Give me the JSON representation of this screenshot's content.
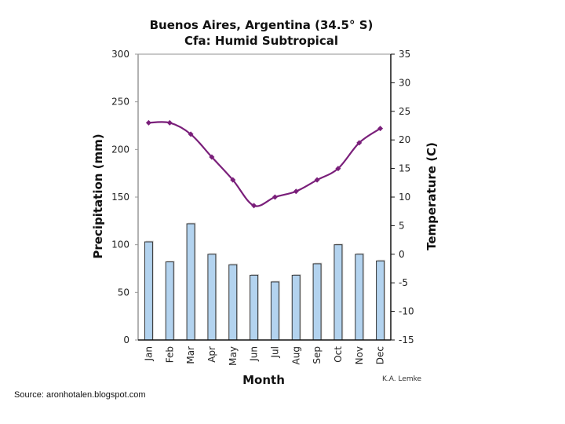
{
  "chart_data": {
    "type": "bar+line",
    "title": "Buenos Aires, Argentina (34.5° S)",
    "subtitle": "Cfa: Humid Subtropical",
    "xlabel": "Month",
    "ylabel_left": "Precipitation (mm)",
    "ylabel_right": "Temperature (C)",
    "categories": [
      "Jan",
      "Feb",
      "Mar",
      "Apr",
      "May",
      "Jun",
      "Jul",
      "Aug",
      "Sep",
      "Oct",
      "Nov",
      "Dec"
    ],
    "series": [
      {
        "type": "bar",
        "axis": "left",
        "values": [
          103,
          82,
          122,
          90,
          79,
          68,
          61,
          68,
          80,
          100,
          90,
          83
        ]
      },
      {
        "type": "line",
        "axis": "right",
        "values": [
          23,
          23,
          21,
          17,
          13,
          8.5,
          10,
          11,
          13,
          15,
          19.5,
          22
        ]
      }
    ],
    "ylim_left": [
      0,
      300
    ],
    "yticks_left": [
      "0",
      "50",
      "100",
      "150",
      "200",
      "250",
      "300"
    ],
    "ylim_right": [
      -15,
      35
    ],
    "yticks_right": [
      "-15",
      "-10",
      "-5",
      "0",
      "5",
      "10",
      "15",
      "20",
      "25",
      "30",
      "35"
    ],
    "credit": "K.A. Lemke",
    "colors": {
      "bar": "#b3d3ef",
      "bar_edge": "#333333",
      "line": "#7a1f7a"
    }
  },
  "source_text": "Source: aronhotalen.blogspot.com"
}
